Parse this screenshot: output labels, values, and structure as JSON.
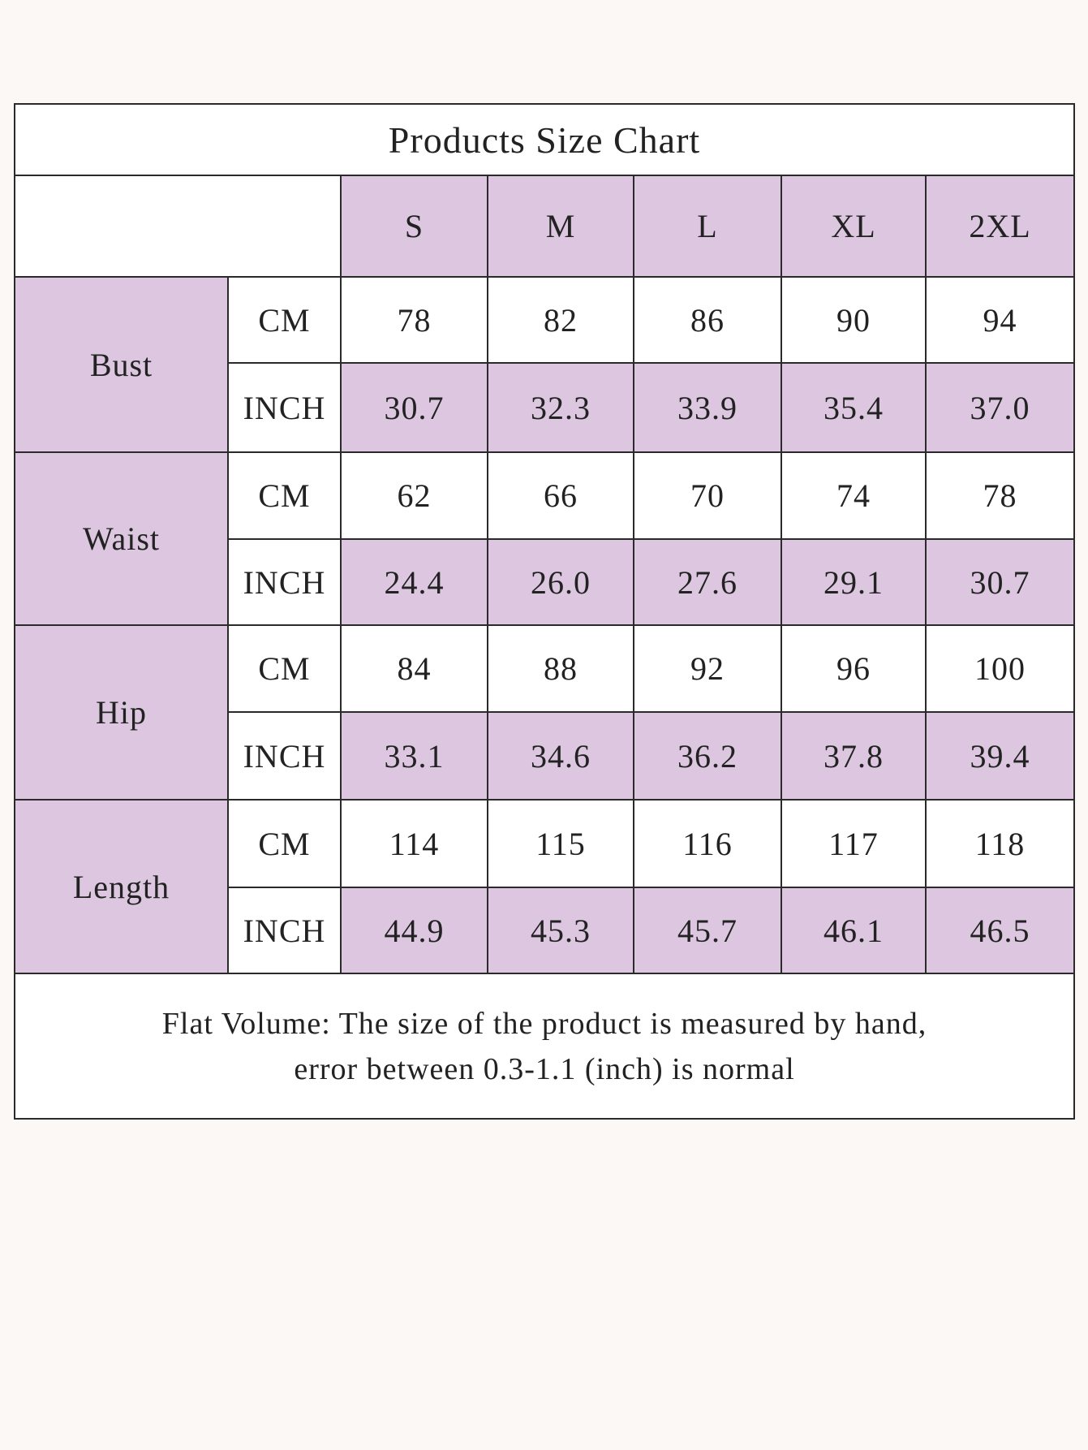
{
  "title": "Products Size Chart",
  "sizes": [
    "S",
    "M",
    "L",
    "XL",
    "2XL"
  ],
  "groups": [
    {
      "name": "Bust",
      "rows": [
        {
          "unit": "CM",
          "values": [
            "78",
            "82",
            "86",
            "90",
            "94"
          ]
        },
        {
          "unit": "INCH",
          "values": [
            "30.7",
            "32.3",
            "33.9",
            "35.4",
            "37.0"
          ]
        }
      ]
    },
    {
      "name": "Waist",
      "rows": [
        {
          "unit": "CM",
          "values": [
            "62",
            "66",
            "70",
            "74",
            "78"
          ]
        },
        {
          "unit": "INCH",
          "values": [
            "24.4",
            "26.0",
            "27.6",
            "29.1",
            "30.7"
          ]
        }
      ]
    },
    {
      "name": "Hip",
      "rows": [
        {
          "unit": "CM",
          "values": [
            "84",
            "88",
            "92",
            "96",
            "100"
          ]
        },
        {
          "unit": "INCH",
          "values": [
            "33.1",
            "34.6",
            "36.2",
            "37.8",
            "39.4"
          ]
        }
      ]
    },
    {
      "name": "Length",
      "rows": [
        {
          "unit": "CM",
          "values": [
            "114",
            "115",
            "116",
            "117",
            "118"
          ]
        },
        {
          "unit": "INCH",
          "values": [
            "44.9",
            "45.3",
            "45.7",
            "46.1",
            "46.5"
          ]
        }
      ]
    }
  ],
  "note": [
    "Flat Volume: The size of the product is measured by hand,",
    "error between 0.3-1.1 (inch) is normal"
  ]
}
